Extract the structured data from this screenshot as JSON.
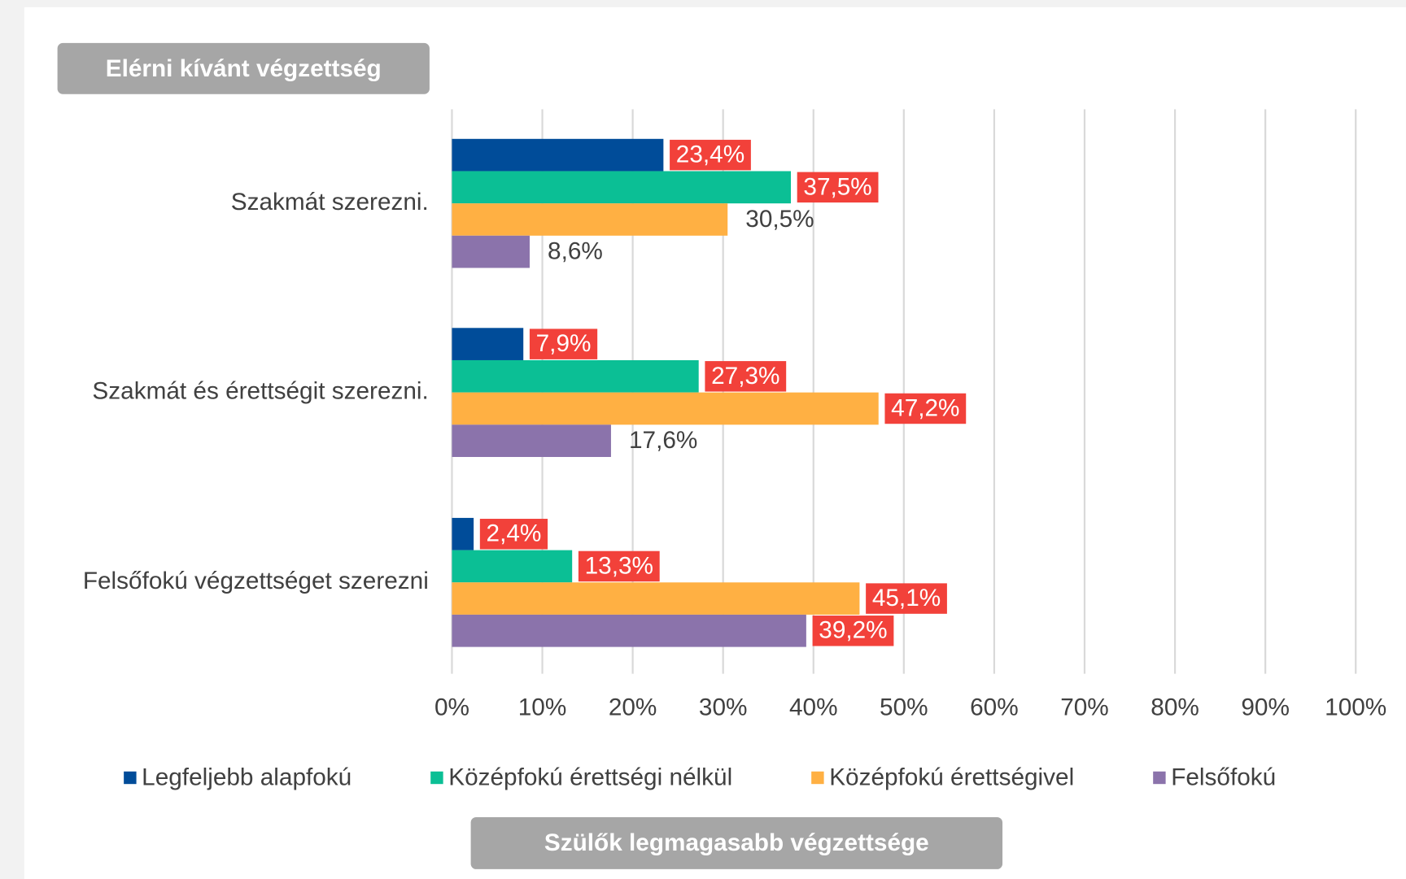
{
  "chart_data": {
    "type": "bar",
    "orientation": "horizontal",
    "y_label": "Elérni kívánt végzettség",
    "legend_title": "Szülők legmagasabb végzettsége",
    "categories": [
      "Szakmát szerezni.",
      "Szakmát és érettségit szerezni.",
      "Felsőfokú végzettséget szerezni"
    ],
    "series": [
      {
        "name": "Legfeljebb alapfokú",
        "color": "#004c99",
        "values": [
          23.4,
          7.9,
          2.4
        ],
        "value_labels": [
          "23,4%",
          "7,9%",
          "2,4%"
        ],
        "label_highlight": [
          true,
          true,
          true
        ]
      },
      {
        "name": "Középfokú érettségi nélkül",
        "color": "#0bbf95",
        "values": [
          37.5,
          27.3,
          13.3
        ],
        "value_labels": [
          "37,5%",
          "27,3%",
          "13,3%"
        ],
        "label_highlight": [
          true,
          true,
          true
        ]
      },
      {
        "name": "Középfokú érettségivel",
        "color": "#ffb043",
        "values": [
          30.5,
          47.2,
          45.1
        ],
        "value_labels": [
          "30,5%",
          "47,2%",
          "45,1%"
        ],
        "label_highlight": [
          false,
          true,
          true
        ]
      },
      {
        "name": "Felsőfokú",
        "color": "#8b73ab",
        "values": [
          8.6,
          17.6,
          39.2
        ],
        "value_labels": [
          "8,6%",
          "17,6%",
          "39,2%"
        ],
        "label_highlight": [
          false,
          false,
          true
        ]
      }
    ],
    "highlight_color": "#f2413a",
    "xlim": [
      0,
      100
    ],
    "xticks": [
      {
        "value": 0,
        "label": "0%"
      },
      {
        "value": 10,
        "label": "10%"
      },
      {
        "value": 20,
        "label": "20%"
      },
      {
        "value": 30,
        "label": "30%"
      },
      {
        "value": 40,
        "label": "40%"
      },
      {
        "value": 50,
        "label": "50%"
      },
      {
        "value": 60,
        "label": "60%"
      },
      {
        "value": 70,
        "label": "70%"
      },
      {
        "value": 80,
        "label": "80%"
      },
      {
        "value": 90,
        "label": "90%"
      },
      {
        "value": 100,
        "label": "100%"
      }
    ],
    "grid": true,
    "legend": "bottom"
  }
}
